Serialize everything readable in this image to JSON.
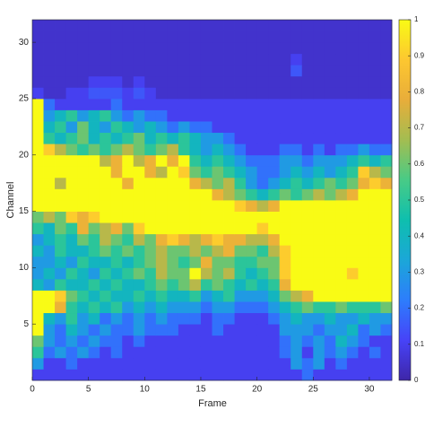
{
  "chart_data": {
    "type": "heatmap",
    "x_label": "Frame",
    "y_label": "Channel",
    "xlim": [
      0,
      32
    ],
    "ylim": [
      0,
      32
    ],
    "xticks": [
      0,
      5,
      10,
      15,
      20,
      25,
      30
    ],
    "yticks": [
      5,
      10,
      15,
      20,
      25,
      30
    ],
    "clim": [
      0,
      1
    ],
    "colorbar_ticks": [
      0,
      0.1,
      0.2,
      0.3,
      0.4,
      0.5,
      0.6,
      0.7,
      0.8,
      0.9,
      1
    ],
    "colormap": [
      "#3e26a8",
      "#4743f8",
      "#2d7dfc",
      "#1ba7d8",
      "#0ebfae",
      "#48cb86",
      "#a3bd51",
      "#e8ad3a",
      "#fdc730",
      "#f9fb15"
    ],
    "z": [
      [
        0.1,
        0.1,
        0.1,
        0.1,
        0.1,
        0.1,
        0.1,
        0.1,
        0.1,
        0.1,
        0.1,
        0.1,
        0.1,
        0.1,
        0.1,
        0.1,
        0.1,
        0.1,
        0.1,
        0.1,
        0.1,
        0.1,
        0.1,
        0.1,
        0.2,
        0.1,
        0.1,
        0.1,
        0.1,
        0.1,
        0.1,
        0.1
      ],
      [
        0.3,
        0.1,
        0.1,
        0.2,
        0.1,
        0.1,
        0.1,
        0.1,
        0.1,
        0.1,
        0.1,
        0.1,
        0.1,
        0.1,
        0.1,
        0.1,
        0.1,
        0.1,
        0.1,
        0.1,
        0.1,
        0.1,
        0.1,
        0.3,
        0.2,
        0.3,
        0.1,
        0.2,
        0.1,
        0.1,
        0.1,
        0.1
      ],
      [
        0.5,
        0.2,
        0.3,
        0.2,
        0.3,
        0.2,
        0.1,
        0.2,
        0.1,
        0.1,
        0.1,
        0.1,
        0.1,
        0.1,
        0.1,
        0.1,
        0.1,
        0.1,
        0.1,
        0.1,
        0.1,
        0.1,
        0.2,
        0.3,
        0.1,
        0.3,
        0.2,
        0.3,
        0.2,
        0.1,
        0.2,
        0.1
      ],
      [
        0.6,
        0.3,
        0.2,
        0.3,
        0.2,
        0.3,
        0.2,
        0.2,
        0.1,
        0.2,
        0.1,
        0.1,
        0.1,
        0.1,
        0.1,
        0.1,
        0.1,
        0.1,
        0.1,
        0.1,
        0.1,
        0.1,
        0.2,
        0.3,
        0.2,
        0.3,
        0.2,
        0.4,
        0.3,
        0.2,
        0.1,
        0.1
      ],
      [
        1,
        0.3,
        0.2,
        0.4,
        0.3,
        0.2,
        0.3,
        0.2,
        0.2,
        0.3,
        0.2,
        0.2,
        0.2,
        0.1,
        0.1,
        0.1,
        0.2,
        0.1,
        0.1,
        0.1,
        0.1,
        0.1,
        0.3,
        0.3,
        0.3,
        0.2,
        0.3,
        0.3,
        0.4,
        0.2,
        0.3,
        0.2
      ],
      [
        1,
        0.4,
        0.3,
        0.5,
        0.3,
        0.4,
        0.2,
        0.3,
        0.2,
        0.3,
        0.2,
        0.3,
        0.2,
        0.2,
        0.2,
        0.1,
        0.2,
        0.2,
        0.1,
        0.1,
        0.1,
        0.2,
        0.3,
        0.4,
        0.3,
        0.3,
        0.4,
        0.3,
        0.3,
        0.4,
        0.3,
        0.3
      ],
      [
        1,
        1,
        0.8,
        0.5,
        0.4,
        0.5,
        0.4,
        0.5,
        0.3,
        0.4,
        0.3,
        0.4,
        0.3,
        0.3,
        0.3,
        0.2,
        0.3,
        0.3,
        0.2,
        0.2,
        0.2,
        0.3,
        0.4,
        0.5,
        0.6,
        0.5,
        0.5,
        0.6,
        0.5,
        0.5,
        0.5,
        0.6
      ],
      [
        1,
        1,
        0.9,
        0.6,
        0.5,
        0.4,
        0.5,
        0.4,
        0.4,
        0.5,
        0.4,
        0.5,
        0.4,
        0.4,
        0.5,
        0.3,
        0.4,
        0.5,
        0.3,
        0.3,
        0.3,
        0.4,
        0.6,
        0.7,
        0.8,
        1,
        1,
        1,
        1,
        1,
        1,
        1
      ],
      [
        0.4,
        0.3,
        0.5,
        0.4,
        0.4,
        0.5,
        0.4,
        0.5,
        0.4,
        0.4,
        0.5,
        0.6,
        0.5,
        0.6,
        0.7,
        0.5,
        0.6,
        0.5,
        0.4,
        0.5,
        0.4,
        0.5,
        0.8,
        1,
        1,
        1,
        1,
        1,
        1,
        1,
        1,
        1
      ],
      [
        0.3,
        0.4,
        0.3,
        0.5,
        0.4,
        0.3,
        0.5,
        0.4,
        0.5,
        0.6,
        0.5,
        0.7,
        0.6,
        0.6,
        1,
        0.7,
        0.6,
        0.7,
        0.5,
        0.4,
        0.5,
        0.6,
        0.9,
        1,
        1,
        1,
        1,
        1,
        0.9,
        1,
        1,
        1
      ],
      [
        0.3,
        0.3,
        0.4,
        0.3,
        0.5,
        0.4,
        0.4,
        0.5,
        0.4,
        0.5,
        0.6,
        0.7,
        0.6,
        0.5,
        0.6,
        0.8,
        0.6,
        0.6,
        0.5,
        0.5,
        0.6,
        0.6,
        0.9,
        1,
        1,
        1,
        1,
        1,
        1,
        1,
        1,
        1
      ],
      [
        0.4,
        0.3,
        0.5,
        0.4,
        0.4,
        0.5,
        0.6,
        0.5,
        0.6,
        0.5,
        0.6,
        0.7,
        0.6,
        0.6,
        0.7,
        0.6,
        0.7,
        0.8,
        0.6,
        0.6,
        0.5,
        0.7,
        0.9,
        1,
        1,
        1,
        1,
        1,
        1,
        1,
        1,
        1
      ],
      [
        0.3,
        0.4,
        0.5,
        0.4,
        0.6,
        0.5,
        0.7,
        0.6,
        0.5,
        0.7,
        0.6,
        0.8,
        0.9,
        0.8,
        0.7,
        0.8,
        0.9,
        0.8,
        0.8,
        0.7,
        0.7,
        0.8,
        1,
        1,
        1,
        1,
        1,
        1,
        1,
        1,
        1,
        1
      ],
      [
        0.5,
        0.4,
        0.6,
        0.5,
        0.8,
        0.6,
        0.7,
        0.8,
        0.6,
        0.9,
        1,
        1,
        1,
        1,
        1,
        1,
        1,
        1,
        1,
        1,
        0.9,
        1,
        1,
        1,
        1,
        1,
        1,
        1,
        1,
        1,
        1,
        1
      ],
      [
        0.6,
        0.7,
        0.6,
        0.9,
        0.8,
        0.9,
        1,
        1,
        1,
        1,
        1,
        1,
        1,
        1,
        1,
        1,
        1,
        1,
        1,
        1,
        1,
        1,
        1,
        1,
        1,
        1,
        1,
        1,
        1,
        1,
        1,
        1
      ],
      [
        1,
        1,
        1,
        1,
        1,
        1,
        1,
        1,
        1,
        1,
        1,
        1,
        1,
        1,
        1,
        1,
        1,
        1,
        0.9,
        0.8,
        0.7,
        0.8,
        1,
        1,
        1,
        1,
        1,
        1,
        1,
        1,
        1,
        1
      ],
      [
        1,
        1,
        1,
        1,
        1,
        1,
        1,
        1,
        1,
        1,
        1,
        1,
        1,
        1,
        1,
        1,
        0.8,
        0.7,
        0.6,
        0.5,
        0.4,
        0.5,
        0.6,
        0.5,
        0.6,
        0.7,
        0.6,
        0.7,
        0.8,
        1,
        1,
        1
      ],
      [
        1,
        1,
        0.7,
        1,
        1,
        1,
        1,
        1,
        0.8,
        1,
        1,
        1,
        1,
        1,
        0.8,
        0.7,
        0.6,
        0.7,
        0.5,
        0.3,
        0.2,
        0.3,
        0.4,
        0.5,
        0.4,
        0.5,
        0.6,
        0.5,
        0.6,
        0.8,
        0.9,
        0.8
      ],
      [
        1,
        1,
        1,
        1,
        1,
        1,
        1,
        0.8,
        1,
        1,
        0.8,
        0.7,
        1,
        0.9,
        0.6,
        0.5,
        0.6,
        0.5,
        0.4,
        0.3,
        0.2,
        0.2,
        0.3,
        0.4,
        0.3,
        0.4,
        0.3,
        0.4,
        0.5,
        0.9,
        0.7,
        0.6
      ],
      [
        1,
        1,
        1,
        1,
        1,
        1,
        0.7,
        0.8,
        1,
        0.7,
        0.8,
        1,
        0.8,
        1,
        0.5,
        0.4,
        0.5,
        0.4,
        0.3,
        0.2,
        0.2,
        0.2,
        0.3,
        0.3,
        0.2,
        0.3,
        0.3,
        0.3,
        0.4,
        0.5,
        0.4,
        0.5
      ],
      [
        1,
        0.9,
        0.7,
        0.6,
        0.5,
        0.6,
        0.5,
        0.6,
        0.7,
        0.6,
        0.5,
        0.6,
        0.7,
        0.5,
        0.4,
        0.3,
        0.4,
        0.3,
        0.2,
        0.1,
        0.1,
        0.1,
        0.2,
        0.2,
        0.1,
        0.2,
        0.1,
        0.2,
        0.2,
        0.3,
        0.2,
        0.2
      ],
      [
        1,
        0.5,
        0.4,
        0.5,
        0.6,
        0.4,
        0.5,
        0.4,
        0.5,
        0.6,
        0.4,
        0.5,
        0.4,
        0.5,
        0.4,
        0.3,
        0.3,
        0.2,
        0.1,
        0.1,
        0.1,
        0.1,
        0.1,
        0.1,
        0.1,
        0.1,
        0.1,
        0.1,
        0.1,
        0.1,
        0.1,
        0.1
      ],
      [
        1,
        0.4,
        0.5,
        0.3,
        0.6,
        0.4,
        0.3,
        0.5,
        0.4,
        0.3,
        0.4,
        0.3,
        0.2,
        0.3,
        0.2,
        0.2,
        0.1,
        0.1,
        0.1,
        0.1,
        0.1,
        0.1,
        0.1,
        0.1,
        0.1,
        0.1,
        0.1,
        0.1,
        0.1,
        0.1,
        0.1,
        0.1
      ],
      [
        1,
        0.3,
        0.4,
        0.5,
        0.3,
        0.4,
        0.5,
        0.3,
        0.2,
        0.3,
        0.2,
        0.2,
        0.1,
        0.1,
        0.1,
        0.1,
        0.1,
        0.1,
        0.1,
        0.1,
        0.1,
        0.1,
        0.1,
        0.1,
        0.1,
        0.1,
        0.1,
        0.1,
        0.1,
        0.1,
        0.1,
        0.1
      ],
      [
        1,
        0.2,
        0.1,
        0.1,
        0.1,
        0.1,
        0.1,
        0.2,
        0.1,
        0.1,
        0.1,
        0.1,
        0.1,
        0.1,
        0.1,
        0.1,
        0.1,
        0.1,
        0.1,
        0.1,
        0.1,
        0.1,
        0.1,
        0.1,
        0.1,
        0.1,
        0.1,
        0.1,
        0.1,
        0.1,
        0.1,
        0.1
      ],
      [
        0.1,
        0.05,
        0.05,
        0.1,
        0.1,
        0.15,
        0.15,
        0.15,
        0.1,
        0.15,
        0.1,
        0.05,
        0.05,
        0.05,
        0.05,
        0.05,
        0.05,
        0.05,
        0.05,
        0.05,
        0.05,
        0.05,
        0.05,
        0.05,
        0.05,
        0.05,
        0.05,
        0.05,
        0.05,
        0.05,
        0.05,
        0.05
      ],
      [
        0.05,
        0.05,
        0.05,
        0.05,
        0.05,
        0.1,
        0.1,
        0.1,
        0.05,
        0.1,
        0.05,
        0.05,
        0.05,
        0.05,
        0.05,
        0.05,
        0.05,
        0.05,
        0.05,
        0.05,
        0.05,
        0.05,
        0.05,
        0.05,
        0.05,
        0.05,
        0.05,
        0.05,
        0.05,
        0.05,
        0.05,
        0.05
      ],
      [
        0.05,
        0.05,
        0.05,
        0.05,
        0.05,
        0.05,
        0.05,
        0.05,
        0.05,
        0.05,
        0.05,
        0.05,
        0.05,
        0.05,
        0.05,
        0.05,
        0.05,
        0.05,
        0.05,
        0.05,
        0.05,
        0.05,
        0.05,
        0.15,
        0.05,
        0.05,
        0.05,
        0.05,
        0.05,
        0.05,
        0.05,
        0.05
      ],
      [
        0.05,
        0.05,
        0.05,
        0.05,
        0.05,
        0.05,
        0.05,
        0.05,
        0.05,
        0.05,
        0.05,
        0.05,
        0.05,
        0.05,
        0.05,
        0.05,
        0.05,
        0.05,
        0.05,
        0.05,
        0.05,
        0.05,
        0.05,
        0.1,
        0.05,
        0.05,
        0.05,
        0.05,
        0.05,
        0.05,
        0.05,
        0.05
      ],
      [
        0.05,
        0.05,
        0.05,
        0.05,
        0.05,
        0.05,
        0.05,
        0.05,
        0.05,
        0.05,
        0.05,
        0.05,
        0.05,
        0.05,
        0.05,
        0.05,
        0.05,
        0.05,
        0.05,
        0.05,
        0.05,
        0.05,
        0.05,
        0.05,
        0.05,
        0.05,
        0.05,
        0.05,
        0.05,
        0.05,
        0.05,
        0.05
      ],
      [
        0.05,
        0.05,
        0.05,
        0.05,
        0.05,
        0.05,
        0.05,
        0.05,
        0.05,
        0.05,
        0.05,
        0.05,
        0.05,
        0.05,
        0.05,
        0.05,
        0.05,
        0.05,
        0.05,
        0.05,
        0.05,
        0.05,
        0.05,
        0.05,
        0.05,
        0.05,
        0.05,
        0.05,
        0.05,
        0.05,
        0.05,
        0.05
      ],
      [
        0.05,
        0.05,
        0.05,
        0.05,
        0.05,
        0.05,
        0.05,
        0.05,
        0.05,
        0.05,
        0.05,
        0.05,
        0.05,
        0.05,
        0.05,
        0.05,
        0.05,
        0.05,
        0.05,
        0.05,
        0.05,
        0.05,
        0.05,
        0.05,
        0.05,
        0.05,
        0.05,
        0.05,
        0.05,
        0.05,
        0.05,
        0.05
      ]
    ]
  }
}
